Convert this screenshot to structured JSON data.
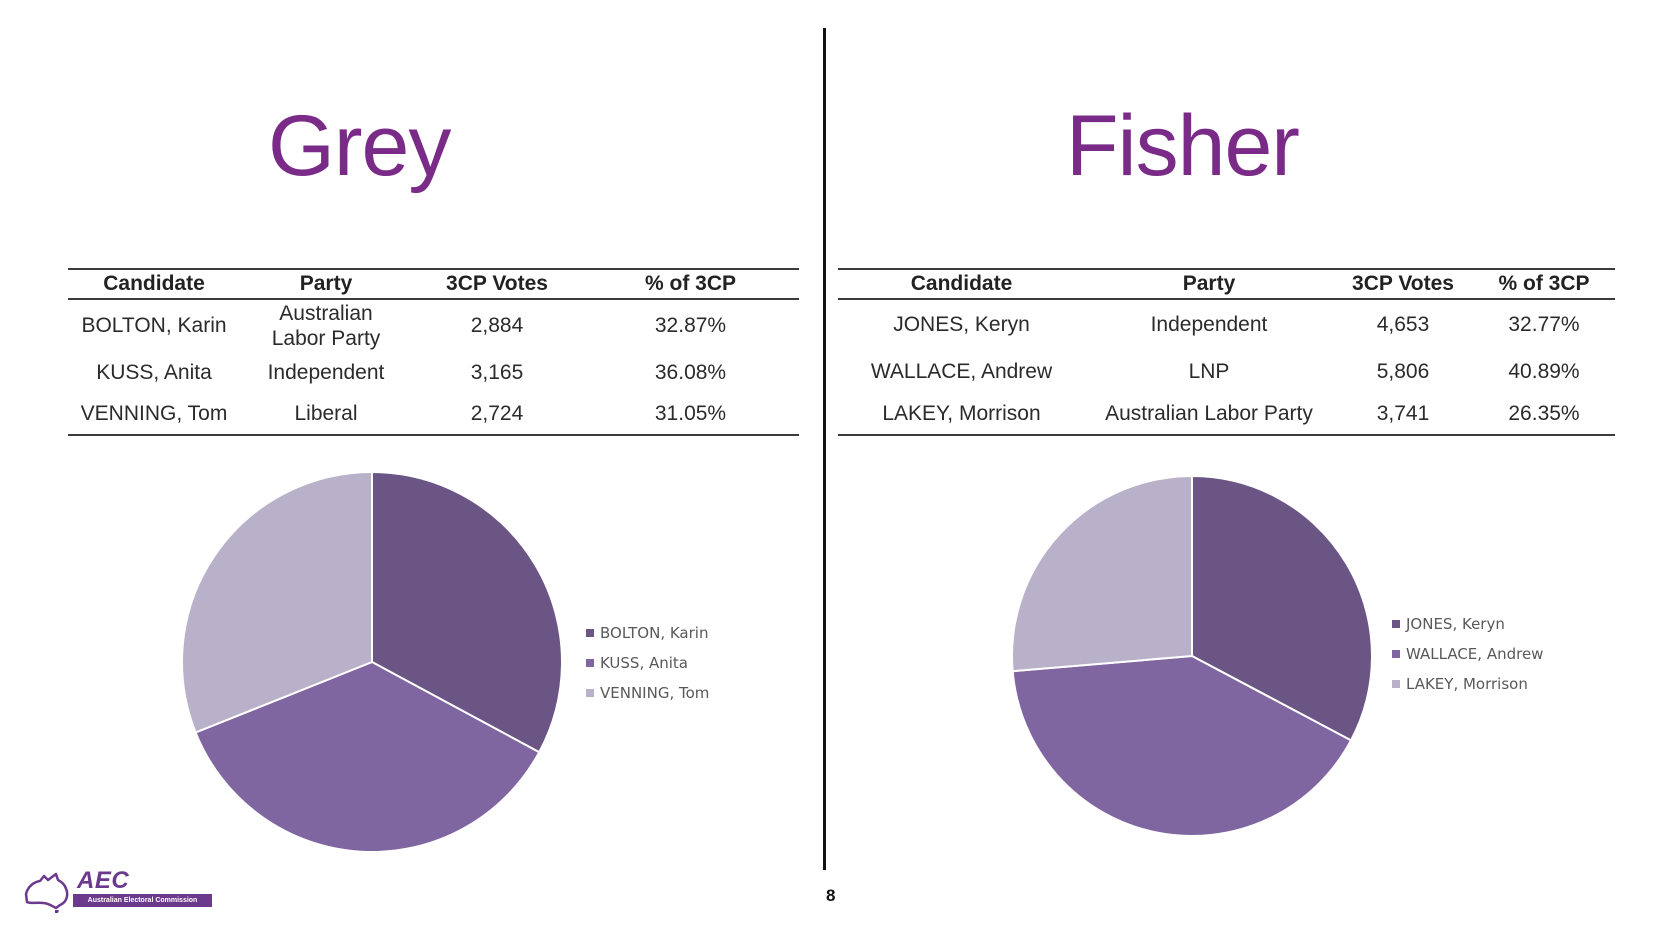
{
  "colors": {
    "title": "#7a2b87",
    "slice_1": "#6b5585",
    "slice_2": "#8066a1",
    "slice_3": "#b9b0c9",
    "logo": "#6b3a8c"
  },
  "left": {
    "title": "Grey",
    "table": {
      "headers": [
        "Candidate",
        "Party",
        "3CP Votes",
        "% of 3CP"
      ],
      "rows": [
        [
          "BOLTON, Karin",
          "Australian Labor Party",
          "2,884",
          "32.87%"
        ],
        [
          "KUSS, Anita",
          "Independent",
          "3,165",
          "36.08%"
        ],
        [
          "VENNING, Tom",
          "Liberal",
          "2,724",
          "31.05%"
        ]
      ]
    }
  },
  "right": {
    "title": "Fisher",
    "table": {
      "headers": [
        "Candidate",
        "Party",
        "3CP Votes",
        "% of 3CP"
      ],
      "rows": [
        [
          "JONES, Keryn",
          "Independent",
          "4,653",
          "32.77%"
        ],
        [
          "WALLACE, Andrew",
          "LNP",
          "5,806",
          "40.89%"
        ],
        [
          "LAKEY, Morrison",
          "Australian Labor Party",
          "3,741",
          "26.35%"
        ]
      ]
    }
  },
  "chart_data": [
    {
      "type": "pie",
      "categories": [
        "BOLTON, Karin",
        "KUSS, Anita",
        "VENNING, Tom"
      ],
      "values": [
        2884,
        3165,
        2724
      ],
      "legend": "right"
    },
    {
      "type": "pie",
      "categories": [
        "JONES, Keryn",
        "WALLACE, Andrew",
        "LAKEY, Morrison"
      ],
      "values": [
        4653,
        5806,
        3741
      ],
      "legend": "right"
    }
  ],
  "footer": {
    "page_number": "8",
    "logo_text": "AEC",
    "logo_subtext": "Australian Electoral Commission"
  }
}
